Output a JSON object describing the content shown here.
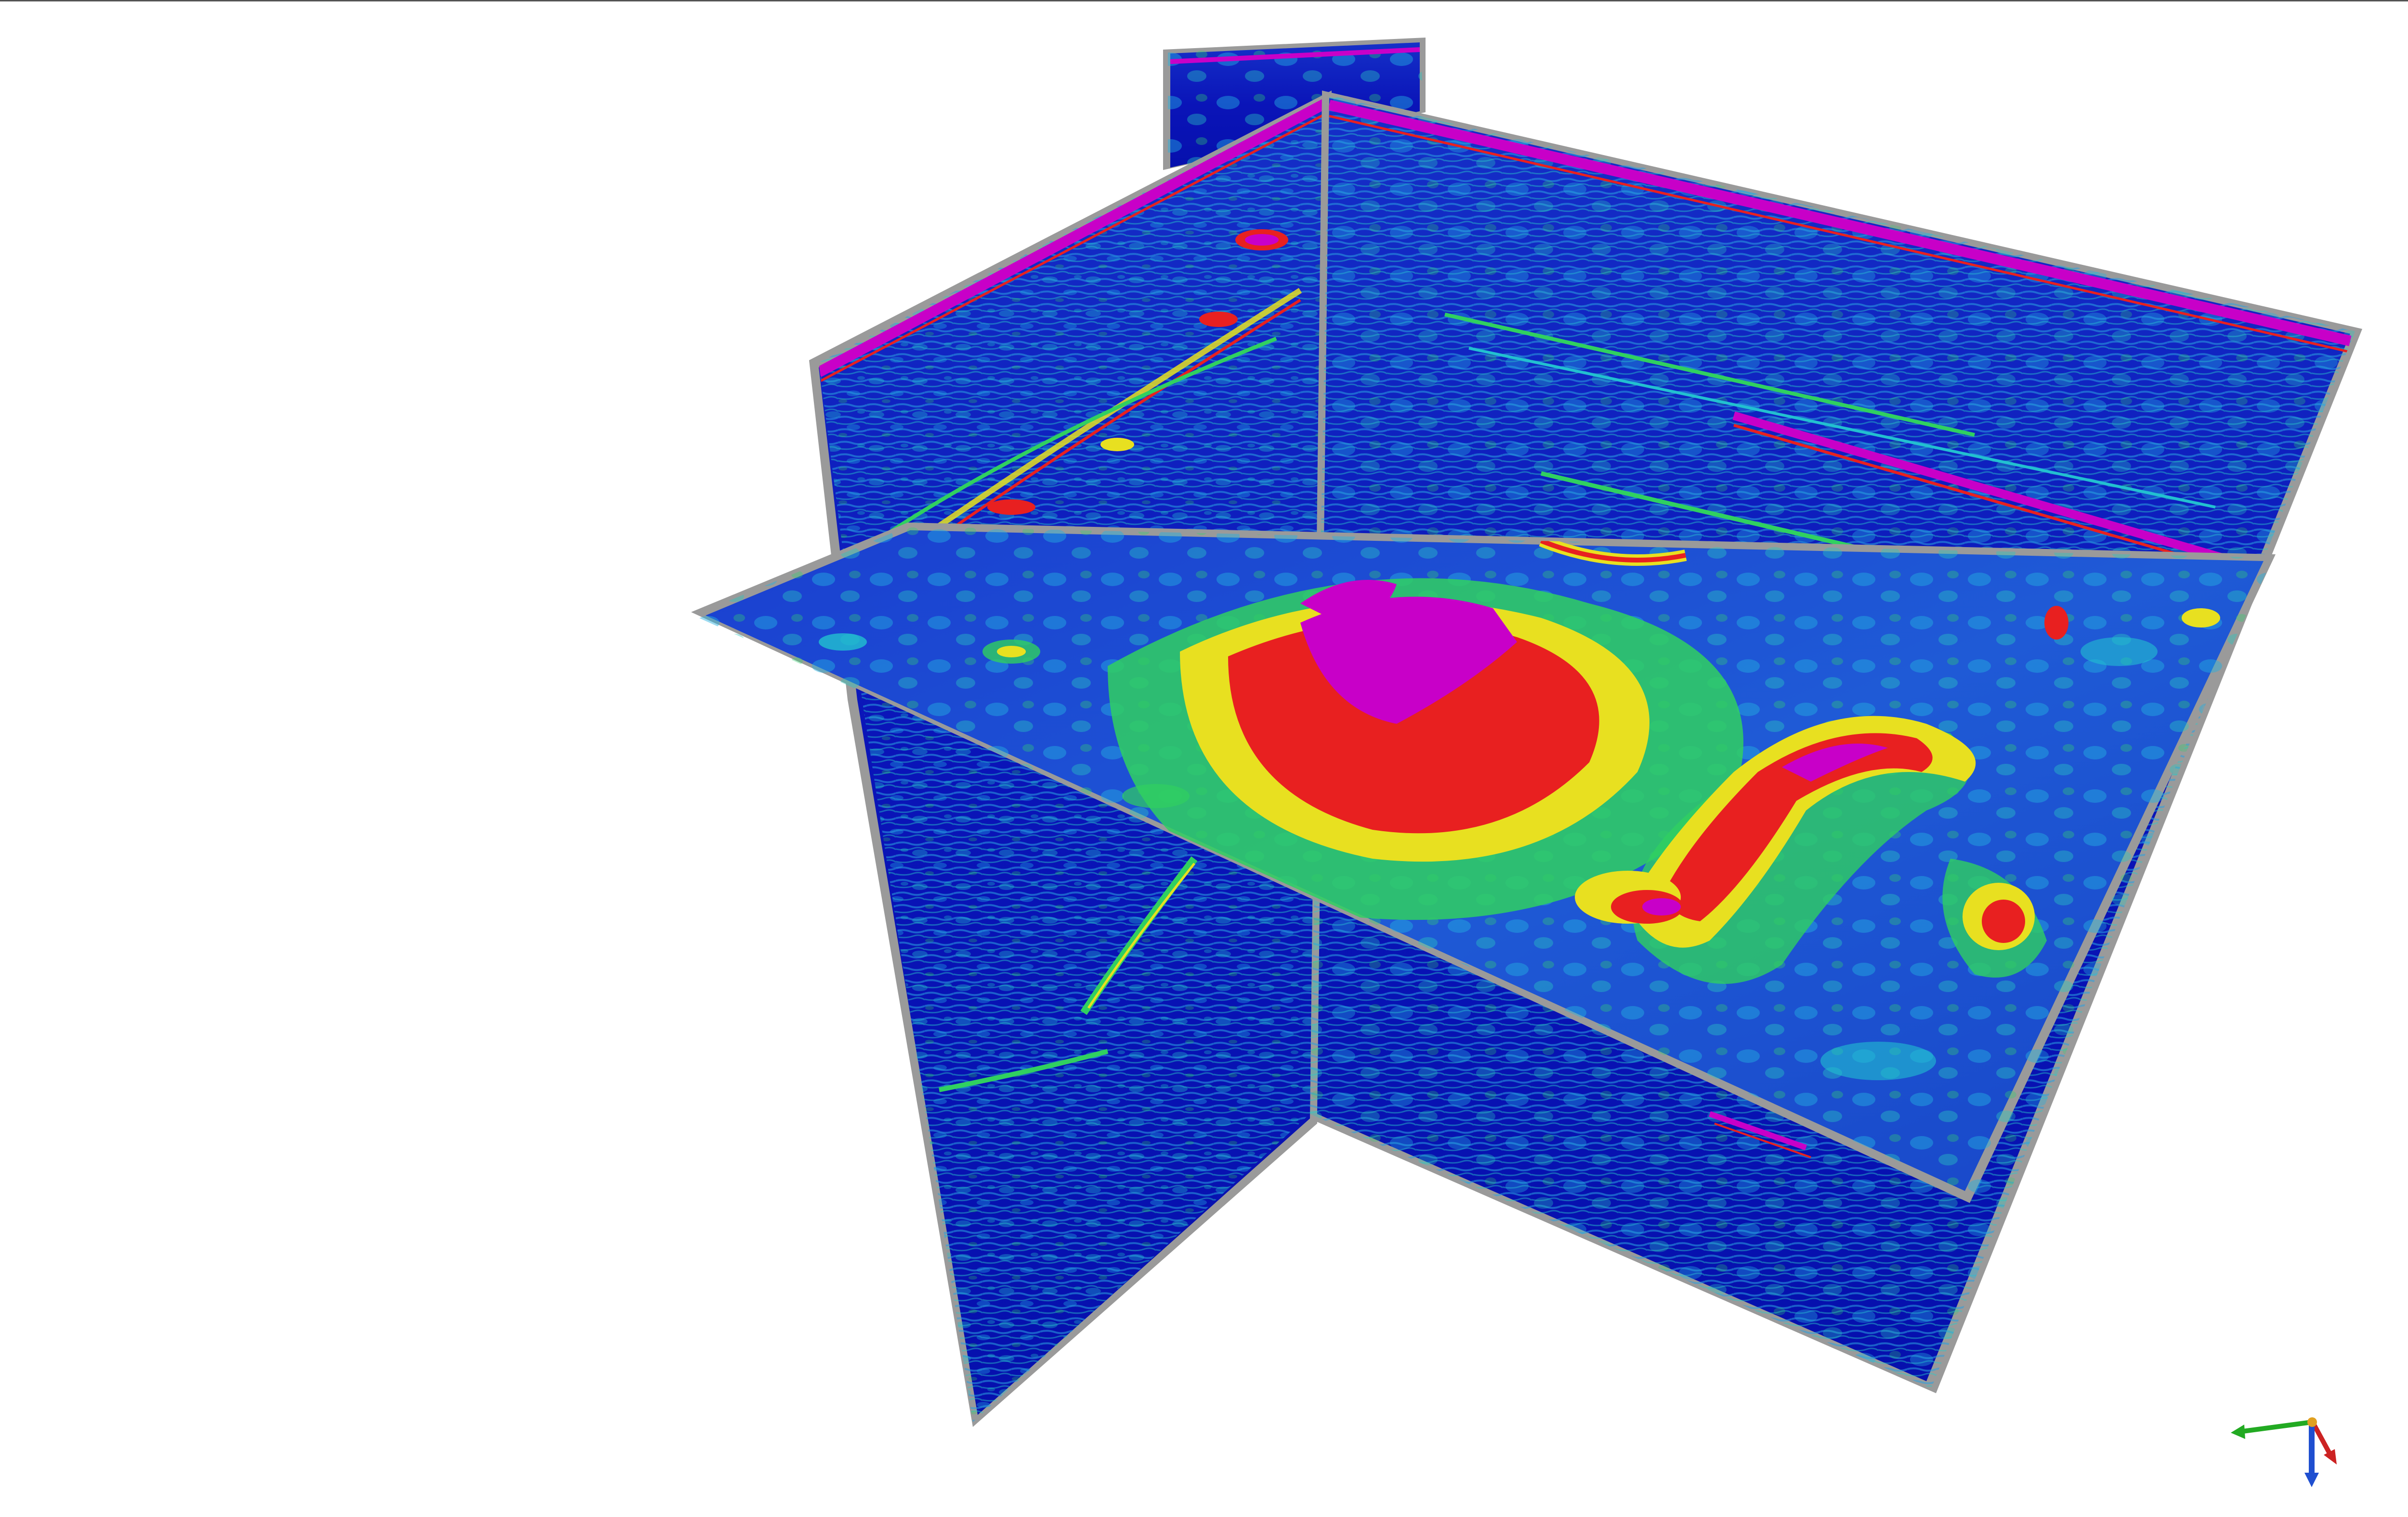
{
  "viewer": {
    "background_color": "#ffffff",
    "frame_color": "#9a9a9a",
    "colormap": [
      "#0a0fb8",
      "#1e5ad8",
      "#20c8d0",
      "#30d060",
      "#e8e020",
      "#e82020",
      "#c800c8"
    ],
    "axes": {
      "x_color": "#22aa22",
      "y_color": "#cc2222",
      "z_color": "#1f4fd0",
      "origin_color": "#e0a020"
    }
  }
}
